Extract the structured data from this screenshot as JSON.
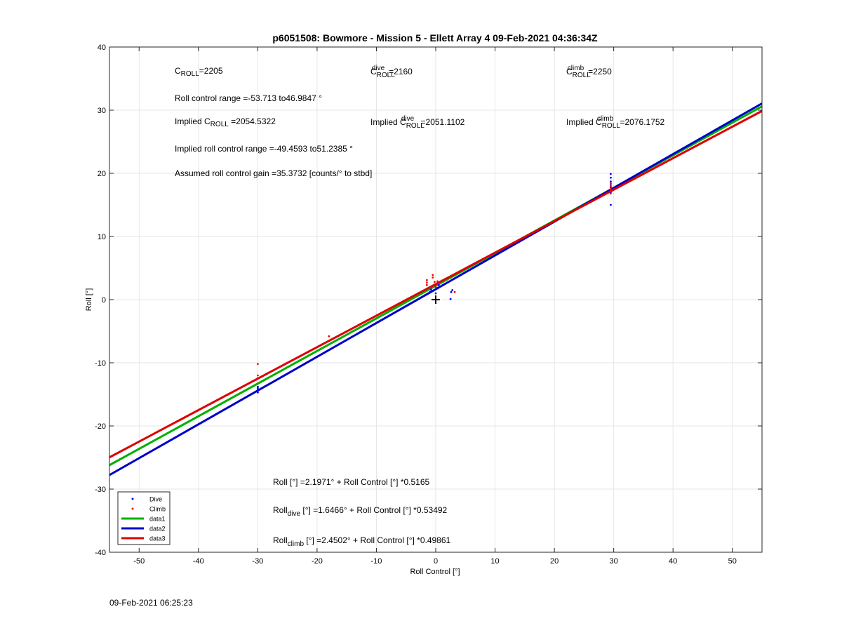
{
  "chart_data": {
    "type": "scatter",
    "title": "p6051508: Bowmore - Mission 5 - Ellett Array 4 09-Feb-2021 04:36:34Z",
    "xlabel": "Roll Control [°]",
    "ylabel": "Roll [°]",
    "xlim": [
      -55,
      55
    ],
    "ylim": [
      -40,
      40
    ],
    "xticks": [
      -50,
      -40,
      -30,
      -20,
      -10,
      0,
      10,
      20,
      30,
      40,
      50
    ],
    "yticks": [
      -40,
      -30,
      -20,
      -10,
      0,
      10,
      20,
      30,
      40
    ],
    "grid": true,
    "legend_position": "bottom-left",
    "series": [
      {
        "name": "Dive",
        "kind": "points",
        "color": "#0000ff",
        "points": [
          [
            -30,
            -14.0
          ],
          [
            -30,
            -14.4
          ],
          [
            -30,
            -14.7
          ],
          [
            -30,
            -14.2
          ],
          [
            -30,
            -13.8
          ],
          [
            -1,
            1.2
          ],
          [
            -0.8,
            1.6
          ],
          [
            0,
            1.0
          ],
          [
            0.2,
            1.8
          ],
          [
            0.5,
            2.3
          ],
          [
            2.5,
            0.1
          ],
          [
            2.6,
            1.2
          ],
          [
            2.8,
            1.5
          ],
          [
            29.5,
            15.0
          ],
          [
            29.5,
            17.0
          ],
          [
            29.5,
            17.8
          ],
          [
            29.5,
            18.3
          ],
          [
            29.5,
            18.7
          ],
          [
            29.5,
            19.3
          ],
          [
            29.5,
            19.9
          ]
        ]
      },
      {
        "name": "Climb",
        "kind": "points",
        "color": "#ff0000",
        "points": [
          [
            -30,
            -10.2
          ],
          [
            -30,
            -12.0
          ],
          [
            -30,
            -12.4
          ],
          [
            -30.3,
            -12.7
          ],
          [
            -18,
            -5.8
          ],
          [
            -1.5,
            2.3
          ],
          [
            -1.5,
            2.7
          ],
          [
            -1.5,
            3.1
          ],
          [
            -0.5,
            3.5
          ],
          [
            -0.5,
            3.9
          ],
          [
            -0.2,
            2.8
          ],
          [
            0,
            2.0
          ],
          [
            0.3,
            2.9
          ],
          [
            3.2,
            1.2
          ],
          [
            29.5,
            16.8
          ],
          [
            29.5,
            17.2
          ],
          [
            29.5,
            17.5
          ],
          [
            29.5,
            18.0
          ],
          [
            29.5,
            18.4
          ]
        ]
      },
      {
        "name": "data1",
        "kind": "line",
        "color": "#00b000",
        "intercept": 2.1971,
        "slope": 0.5165
      },
      {
        "name": "data2",
        "kind": "line",
        "color": "#0000c8",
        "intercept": 1.6466,
        "slope": 0.53492
      },
      {
        "name": "data3",
        "kind": "line",
        "color": "#dd0000",
        "intercept": 2.4502,
        "slope": 0.49861
      }
    ],
    "annotations": {
      "c_roll": {
        "base": "C",
        "sub": "ROLL",
        "value": "=2205"
      },
      "c_roll_dive": {
        "base": "C",
        "sub": "ROLL",
        "sup": "dive",
        "value": "=2160"
      },
      "c_roll_climb": {
        "base": "C",
        "sub": "ROLL",
        "sup": "climb",
        "value": "=2250"
      },
      "roll_control_range": "Roll control range =-53.713 to46.9847 °",
      "implied_c_roll": {
        "prefix": "Implied C",
        "sub": "ROLL",
        "value": " =2054.5322"
      },
      "implied_c_roll_dive": {
        "prefix": "Implied C",
        "sub": "ROLL",
        "sup": "dive",
        "value": " =2051.1102"
      },
      "implied_c_roll_climb": {
        "prefix": "Implied C",
        "sub": "ROLL",
        "sup": "climb",
        "value": " =2076.1752"
      },
      "implied_range": "Implied roll control range =-49.4593 to51.2385 °",
      "gain": "Assumed roll control gain =35.3732 [counts/° to stbd]",
      "fit_all": "Roll [°] =2.1971° + Roll Control [°] *0.5165",
      "fit_dive": {
        "base": "Roll",
        "sub": "dive",
        "rest": " [°] =1.6466° + Roll Control [°] *0.53492"
      },
      "fit_climb": {
        "base": "Roll",
        "sub": "climb",
        "rest": " [°] =2.4502° + Roll Control [°] *0.49861"
      }
    },
    "marker": {
      "kind": "plus",
      "x": 0,
      "y": 0
    }
  },
  "footer": {
    "timestamp": "09-Feb-2021 06:25:23"
  }
}
